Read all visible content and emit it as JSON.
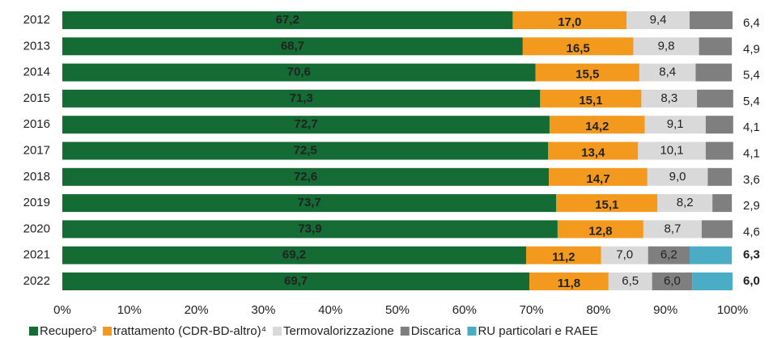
{
  "chart_data": {
    "type": "stacked-bar-horizontal",
    "categories": [
      "2012",
      "2013",
      "2014",
      "2015",
      "2016",
      "2017",
      "2018",
      "2019",
      "2020",
      "2021",
      "2022"
    ],
    "series": [
      {
        "name": "Recupero³",
        "color": "#146b34",
        "values": [
          67.2,
          68.7,
          70.6,
          71.3,
          72.7,
          72.5,
          72.6,
          73.7,
          73.9,
          69.2,
          69.7
        ],
        "value_labels": [
          "67,2",
          "68,7",
          "70,6",
          "71,3",
          "72,7",
          "72,5",
          "72,6",
          "73,7",
          "73,9",
          "69,2",
          "69,7"
        ]
      },
      {
        "name": "trattamento (CDR-BD-altro)⁴",
        "color": "#f39a1e",
        "values": [
          17.0,
          16.5,
          15.5,
          15.1,
          14.2,
          13.4,
          14.7,
          15.1,
          12.8,
          11.2,
          11.8
        ],
        "value_labels": [
          "17,0",
          "16,5",
          "15,5",
          "15,1",
          "14,2",
          "13,4",
          "14,7",
          "15,1",
          "12,8",
          "11,2",
          "11,8"
        ]
      },
      {
        "name": "Termovalorizzazione",
        "color": "#d9d9d9",
        "values": [
          9.4,
          9.8,
          8.4,
          8.3,
          9.1,
          10.1,
          9.0,
          8.2,
          8.7,
          7.0,
          6.5
        ],
        "value_labels": [
          "9,4",
          "9,8",
          "8,4",
          "8,3",
          "9,1",
          "10,1",
          "9,0",
          "8,2",
          "8,7",
          "7,0",
          "6,5"
        ]
      },
      {
        "name": "Discarica",
        "color": "#7f7f7f",
        "values": [
          6.4,
          4.9,
          5.4,
          5.4,
          4.1,
          4.1,
          3.6,
          2.9,
          4.6,
          6.2,
          6.0
        ],
        "value_labels": [
          "6,4",
          "4,9",
          "5,4",
          "5,4",
          "4,1",
          "4,1",
          "3,6",
          "2,9",
          "4,6",
          "6,2",
          "6,0"
        ]
      },
      {
        "name": "RU particolari e RAEE",
        "color": "#4bacc6",
        "values": [
          null,
          null,
          null,
          null,
          null,
          null,
          null,
          null,
          null,
          6.3,
          6.0
        ],
        "value_labels": [
          null,
          null,
          null,
          null,
          null,
          null,
          null,
          null,
          null,
          "6,3",
          "6,0"
        ]
      }
    ],
    "xlim": [
      0,
      100
    ],
    "xticks": [
      {
        "value": 0,
        "label": "0%"
      },
      {
        "value": 10,
        "label": "10%"
      },
      {
        "value": 20,
        "label": "20%"
      },
      {
        "value": 30,
        "label": "30%"
      },
      {
        "value": 40,
        "label": "40%"
      },
      {
        "value": 50,
        "label": "50%"
      },
      {
        "value": 60,
        "label": "60%"
      },
      {
        "value": 70,
        "label": "70%"
      },
      {
        "value": 80,
        "label": "80%"
      },
      {
        "value": 90,
        "label": "90%"
      },
      {
        "value": 100,
        "label": "100%"
      }
    ],
    "legend": "bottom"
  }
}
